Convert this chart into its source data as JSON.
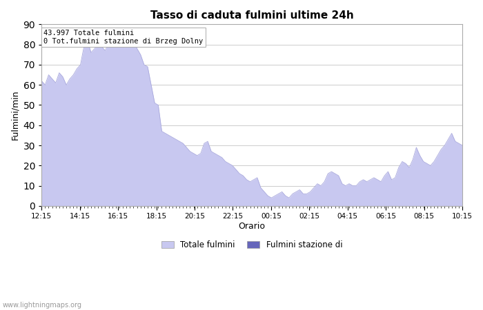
{
  "title": "Tasso di caduta fulmini ultime 24h",
  "xlabel": "Orario",
  "ylabel": "Fulmini/min",
  "ylim": [
    0,
    90
  ],
  "yticks": [
    0,
    10,
    20,
    30,
    40,
    50,
    60,
    70,
    80,
    90
  ],
  "xtick_labels": [
    "12:15",
    "14:15",
    "16:15",
    "18:15",
    "20:15",
    "22:15",
    "00:15",
    "02:15",
    "04:15",
    "06:15",
    "08:15",
    "10:15"
  ],
  "annotation": "43.997 Totale fulmini\n0 Tot.fulmini stazione di Brzeg Dolny",
  "legend_labels": [
    "Totale fulmini",
    "Fulmini stazione di"
  ],
  "fill_color_light": "#c8c8f0",
  "fill_color_dark": "#6666bb",
  "watermark": "www.lightningmaps.org",
  "background_color": "#ffffff",
  "grid_color": "#cccccc",
  "y_total": [
    62,
    60,
    65,
    63,
    61,
    66,
    64,
    60,
    63,
    65,
    68,
    70,
    79,
    82,
    76,
    78,
    80,
    79,
    77,
    81,
    83,
    85,
    87,
    86,
    88,
    86,
    83,
    78,
    75,
    70,
    69,
    60,
    51,
    50,
    37,
    36,
    35,
    34,
    33,
    32,
    31,
    29,
    27,
    26,
    25,
    26,
    31,
    32,
    27,
    26,
    25,
    24,
    22,
    21,
    20,
    18,
    16,
    15,
    13,
    12,
    13,
    14,
    9,
    7,
    5,
    4,
    5,
    6,
    7,
    5,
    4,
    6,
    7,
    8,
    6,
    6,
    7,
    9,
    11,
    10,
    12,
    16,
    17,
    16,
    15,
    11,
    10,
    11,
    10,
    10,
    12,
    13,
    12,
    13,
    14,
    13,
    12,
    15,
    17,
    13,
    14,
    19,
    22,
    21,
    19,
    23,
    29,
    25,
    22,
    21,
    20,
    22,
    25,
    28,
    30,
    33,
    36,
    32,
    31,
    30
  ]
}
